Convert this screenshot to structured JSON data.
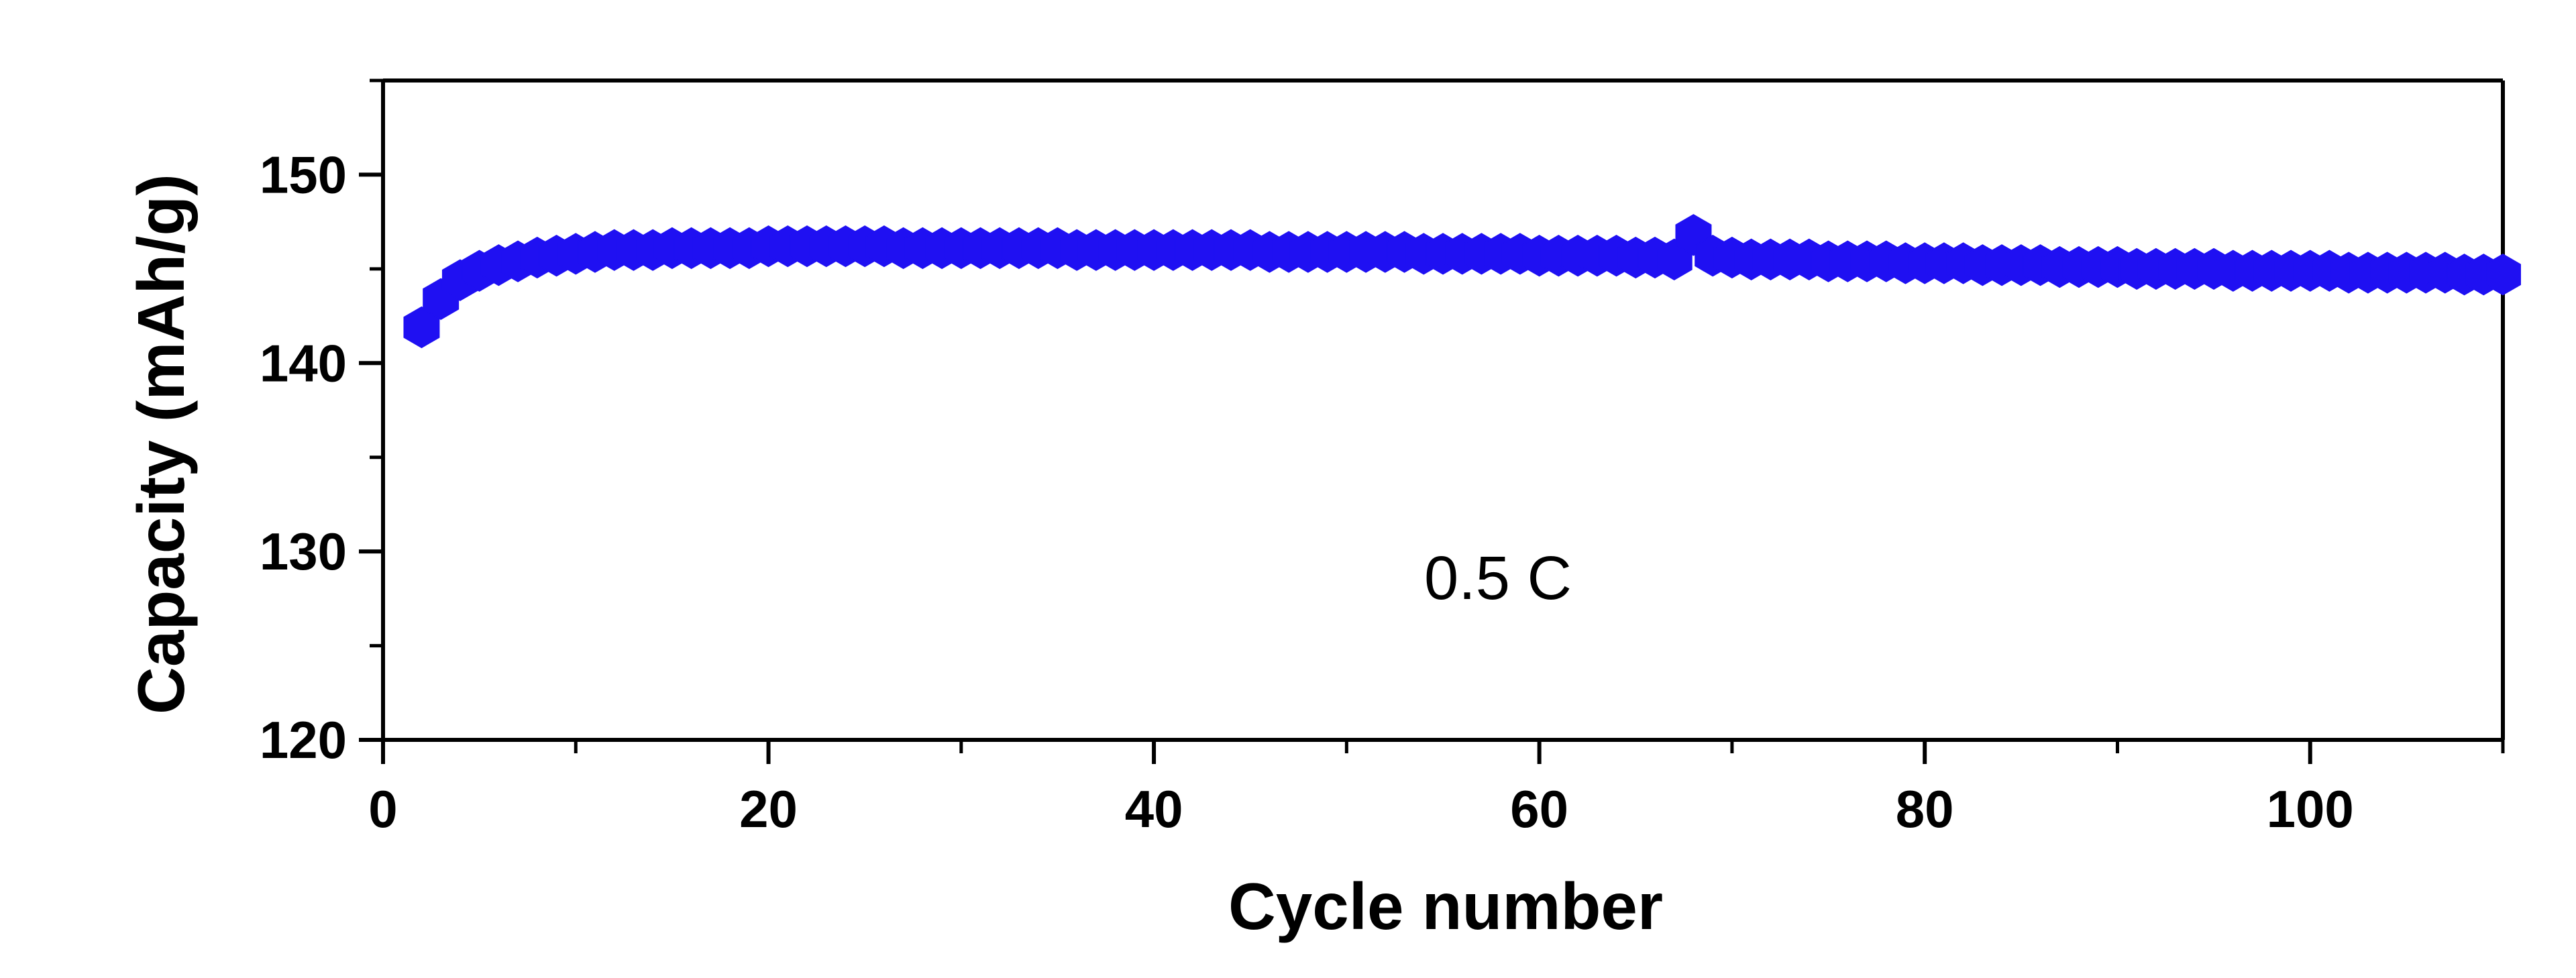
{
  "chart_data": {
    "type": "scatter",
    "title": "",
    "xlabel": "Cycle number",
    "ylabel": "Capacity (mAh/g)",
    "xlim": [
      0,
      110
    ],
    "ylim": [
      120,
      155
    ],
    "x_ticks": [
      0,
      20,
      40,
      60,
      80,
      100
    ],
    "x_tick_labels": [
      "0",
      "20",
      "40",
      "60",
      "80",
      "100"
    ],
    "y_ticks": [
      120,
      130,
      140,
      150
    ],
    "y_tick_labels": [
      "120",
      "130",
      "140",
      "150"
    ],
    "grid": false,
    "annotation": "0.5 C",
    "marker": "hexagon",
    "marker_color": "#1f10f2",
    "series": [
      {
        "x": [
          2,
          3,
          4,
          5,
          6,
          7,
          8,
          9,
          10,
          11,
          12,
          13,
          14,
          15,
          16,
          17,
          18,
          19,
          20,
          21,
          22,
          23,
          24,
          25,
          26,
          27,
          28,
          29,
          30,
          31,
          32,
          33,
          34,
          35,
          36,
          37,
          38,
          39,
          40,
          41,
          42,
          43,
          44,
          45,
          46,
          47,
          48,
          49,
          50,
          51,
          52,
          53,
          54,
          55,
          56,
          57,
          58,
          59,
          60,
          61,
          62,
          63,
          64,
          65,
          66,
          67,
          68,
          69,
          70,
          71,
          72,
          73,
          74,
          75,
          76,
          77,
          78,
          79,
          80,
          81,
          82,
          83,
          84,
          85,
          86,
          87,
          88,
          89,
          90,
          91,
          92,
          93,
          94,
          95,
          96,
          97,
          98,
          99,
          100,
          101,
          102,
          103,
          104,
          105,
          106,
          107,
          108,
          109,
          110
        ],
        "values": [
          141.9,
          143.4,
          144.4,
          144.9,
          145.2,
          145.4,
          145.6,
          145.7,
          145.8,
          145.9,
          146.0,
          146.0,
          146.0,
          146.1,
          146.1,
          146.1,
          146.1,
          146.1,
          146.2,
          146.2,
          146.2,
          146.2,
          146.2,
          146.2,
          146.2,
          146.1,
          146.1,
          146.1,
          146.1,
          146.1,
          146.1,
          146.1,
          146.1,
          146.1,
          146.0,
          146.0,
          146.0,
          146.0,
          146.0,
          146.0,
          146.0,
          146.0,
          146.0,
          146.0,
          145.9,
          145.9,
          145.9,
          145.9,
          145.9,
          145.9,
          145.9,
          145.9,
          145.8,
          145.8,
          145.8,
          145.8,
          145.8,
          145.8,
          145.7,
          145.7,
          145.7,
          145.7,
          145.7,
          145.6,
          145.6,
          145.5,
          146.8,
          145.7,
          145.6,
          145.5,
          145.5,
          145.5,
          145.5,
          145.4,
          145.4,
          145.4,
          145.4,
          145.3,
          145.3,
          145.3,
          145.3,
          145.2,
          145.2,
          145.2,
          145.2,
          145.1,
          145.1,
          145.1,
          145.1,
          145.0,
          145.0,
          145.0,
          145.0,
          145.0,
          144.9,
          144.9,
          144.9,
          144.9,
          144.9,
          144.9,
          144.8,
          144.8,
          144.8,
          144.8,
          144.8,
          144.8,
          144.7,
          144.7,
          144.7
        ]
      }
    ]
  }
}
